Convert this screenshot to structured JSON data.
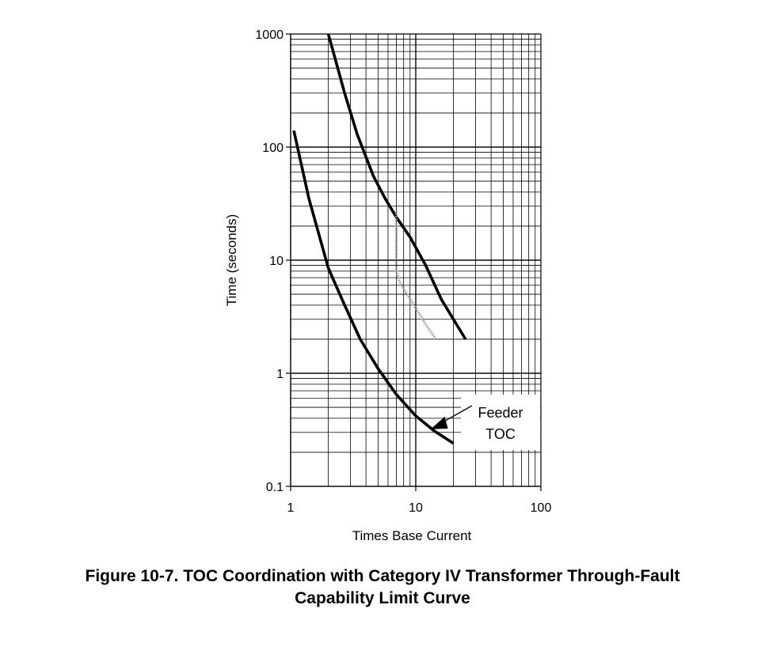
{
  "caption": {
    "line1": "Figure 10-7. TOC Coordination with Category IV Transformer Through-Fault",
    "line2": "Capability Limit Curve"
  },
  "chart_data": {
    "type": "line",
    "title": "",
    "xlabel": "Times Base Current",
    "ylabel": "Time (seconds)",
    "x_scale": "log",
    "y_scale": "log",
    "xlim": [
      1,
      100
    ],
    "ylim": [
      0.1,
      1000
    ],
    "x_ticks": [
      "1",
      "10",
      "100"
    ],
    "y_ticks": [
      "0.1",
      "1",
      "10",
      "100",
      "1000"
    ],
    "grid": true,
    "colors": {
      "curve": "#000000",
      "limit_curve": "#999999"
    },
    "series": [
      {
        "style": "solid-thick",
        "x": [
          2.0,
          2.7,
          3.4,
          4.6,
          5.7,
          7.0,
          9.0,
          12.0,
          16.0,
          25.0
        ],
        "y": [
          1000,
          300,
          130,
          55,
          35,
          24,
          16,
          9,
          4.5,
          2.0
        ]
      },
      {
        "style": "gray-dotted",
        "x": [
          7.0,
          7.0,
          7.4,
          8.5,
          10.0,
          12.0,
          14.5
        ],
        "y": [
          27,
          8,
          6.5,
          5.0,
          3.8,
          2.7,
          2.0
        ]
      },
      {
        "style": "solid-thick",
        "x": [
          1.06,
          1.4,
          2.0,
          2.7,
          3.6,
          5.0,
          7.0,
          10.0,
          14.0,
          20.0
        ],
        "y": [
          140,
          35,
          8.5,
          4.0,
          2.0,
          1.1,
          0.65,
          0.42,
          0.31,
          0.24
        ]
      }
    ],
    "annotations": [
      {
        "line1": "Feeder",
        "line2": "TOC",
        "arrow_to": {
          "x": 13.5,
          "y": 0.33
        }
      }
    ]
  }
}
